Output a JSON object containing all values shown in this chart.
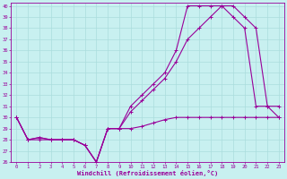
{
  "title": "",
  "xlabel": "Windchill (Refroidissement éolien,°C)",
  "bg_color": "#c8f0f0",
  "line_color": "#990099",
  "grid_color": "#aadddd",
  "xlim": [
    -0.5,
    23.5
  ],
  "ylim": [
    26,
    40.3
  ],
  "xticks": [
    0,
    1,
    2,
    3,
    4,
    5,
    6,
    7,
    8,
    9,
    10,
    11,
    12,
    13,
    14,
    15,
    16,
    17,
    18,
    19,
    20,
    21,
    22,
    23
  ],
  "yticks": [
    26,
    27,
    28,
    29,
    30,
    31,
    32,
    33,
    34,
    35,
    36,
    37,
    38,
    39,
    40
  ],
  "line1_x": [
    0,
    1,
    2,
    3,
    4,
    5,
    6,
    7,
    8,
    9,
    10,
    11,
    12,
    13,
    14,
    15,
    16,
    17,
    18,
    19,
    20,
    21,
    22,
    23
  ],
  "line1_y": [
    30,
    28,
    28,
    28,
    28,
    28,
    27.5,
    26,
    29,
    29,
    29,
    29.2,
    29.5,
    29.8,
    30,
    30,
    30,
    30,
    30,
    30,
    30,
    30,
    30,
    30
  ],
  "line2_x": [
    0,
    1,
    2,
    3,
    4,
    5,
    6,
    7,
    8,
    9,
    10,
    11,
    12,
    13,
    14,
    15,
    16,
    17,
    18,
    19,
    20,
    21,
    22,
    23
  ],
  "line2_y": [
    30,
    28,
    28.2,
    28,
    28,
    28,
    27.5,
    26,
    29,
    29,
    30.5,
    31.5,
    32.5,
    33.5,
    35,
    37,
    38,
    39,
    40,
    39,
    38,
    31,
    31,
    30
  ],
  "line3_x": [
    0,
    1,
    2,
    3,
    4,
    5,
    6,
    7,
    8,
    9,
    10,
    11,
    12,
    13,
    14,
    15,
    16,
    17,
    18,
    19,
    20,
    21,
    22,
    23
  ],
  "line3_y": [
    30,
    28,
    28.2,
    28,
    28,
    28,
    27.5,
    26,
    29,
    29,
    31,
    32,
    33,
    34,
    36,
    40,
    40,
    40,
    40,
    40,
    39,
    38,
    31,
    31
  ],
  "marker": "+",
  "markersize": 3,
  "linewidth": 0.8
}
